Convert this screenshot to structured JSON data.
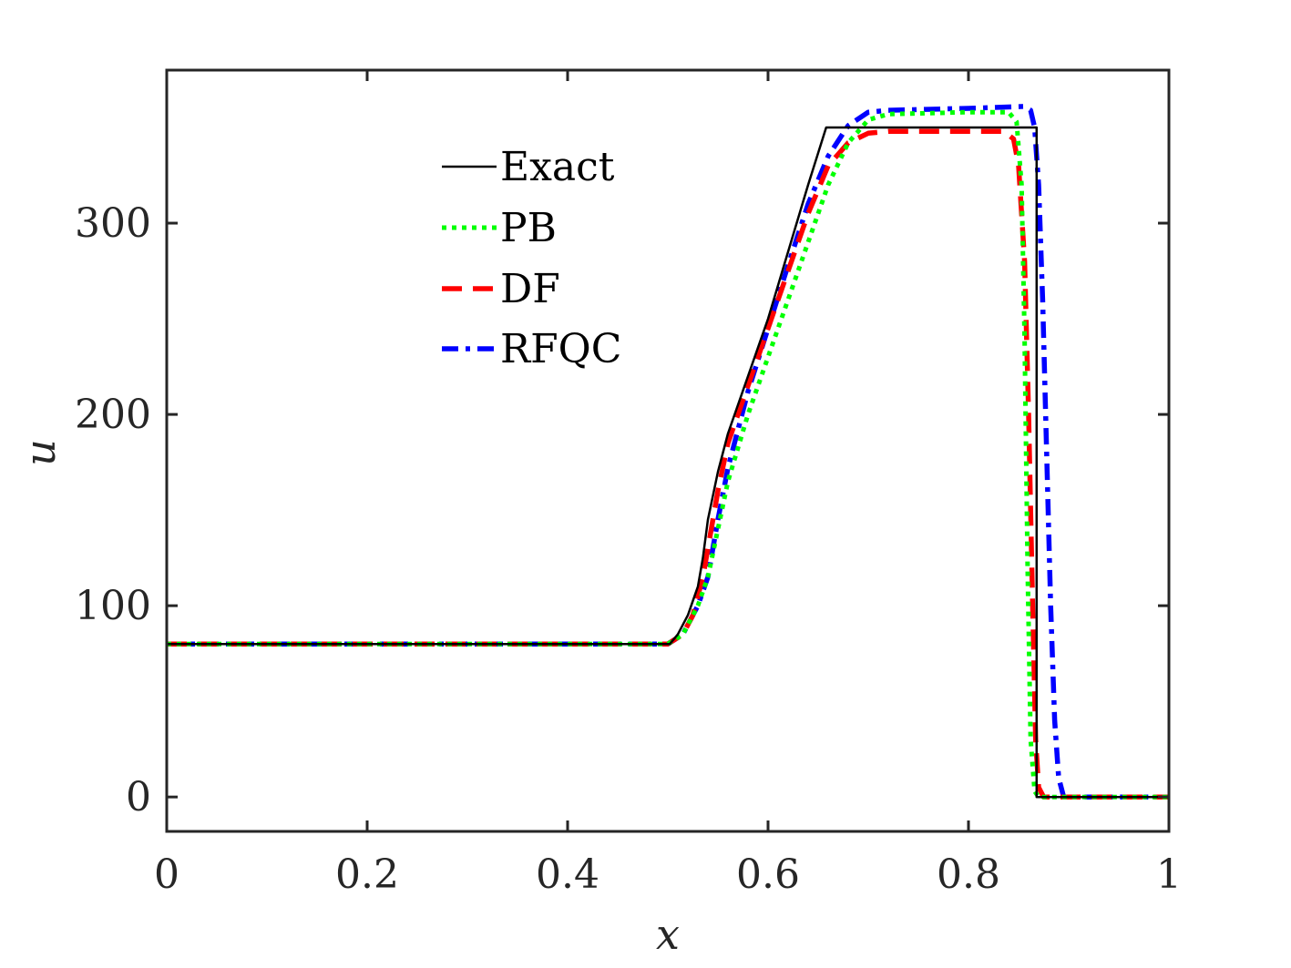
{
  "chart_data": {
    "type": "line",
    "title": "",
    "xlabel": "x",
    "ylabel": "u",
    "xlim": [
      0,
      1
    ],
    "ylim": [
      -18,
      380
    ],
    "xticks": [
      0,
      0.2,
      0.4,
      0.6,
      0.8,
      1
    ],
    "xtick_labels": [
      "0",
      "0.2",
      "0.4",
      "0.6",
      "0.8",
      "1"
    ],
    "yticks": [
      0,
      100,
      200,
      300
    ],
    "ytick_labels": [
      "0",
      "100",
      "200",
      "300"
    ],
    "grid": false,
    "legend_position": "top-center",
    "series": [
      {
        "name": "Exact",
        "color": "#000000",
        "style": "solid",
        "points": [
          [
            0,
            80
          ],
          [
            0.502,
            80
          ],
          [
            0.51,
            85
          ],
          [
            0.52,
            95
          ],
          [
            0.53,
            110
          ],
          [
            0.535,
            125
          ],
          [
            0.54,
            145
          ],
          [
            0.55,
            170
          ],
          [
            0.56,
            190
          ],
          [
            0.58,
            220
          ],
          [
            0.6,
            250
          ],
          [
            0.62,
            285
          ],
          [
            0.64,
            320
          ],
          [
            0.658,
            350
          ],
          [
            0.868,
            350
          ],
          [
            0.868,
            0
          ],
          [
            1,
            0
          ]
        ]
      },
      {
        "name": "PB",
        "color": "#00ff00",
        "style": "dotted",
        "points": [
          [
            0,
            80
          ],
          [
            0.5,
            80
          ],
          [
            0.515,
            85
          ],
          [
            0.53,
            100
          ],
          [
            0.54,
            115
          ],
          [
            0.55,
            140
          ],
          [
            0.56,
            165
          ],
          [
            0.58,
            200
          ],
          [
            0.6,
            230
          ],
          [
            0.62,
            260
          ],
          [
            0.64,
            290
          ],
          [
            0.66,
            320
          ],
          [
            0.68,
            342
          ],
          [
            0.7,
            354
          ],
          [
            0.72,
            357
          ],
          [
            0.8,
            358
          ],
          [
            0.84,
            358
          ],
          [
            0.848,
            353
          ],
          [
            0.853,
            320
          ],
          [
            0.856,
            240
          ],
          [
            0.859,
            120
          ],
          [
            0.862,
            30
          ],
          [
            0.866,
            3
          ],
          [
            0.87,
            0
          ],
          [
            1,
            0
          ]
        ]
      },
      {
        "name": "DF",
        "color": "#ff0000",
        "style": "dashed",
        "points": [
          [
            0,
            80
          ],
          [
            0.5,
            80
          ],
          [
            0.515,
            85
          ],
          [
            0.525,
            95
          ],
          [
            0.535,
            115
          ],
          [
            0.54,
            130
          ],
          [
            0.55,
            160
          ],
          [
            0.56,
            185
          ],
          [
            0.58,
            215
          ],
          [
            0.6,
            245
          ],
          [
            0.62,
            275
          ],
          [
            0.64,
            305
          ],
          [
            0.66,
            330
          ],
          [
            0.68,
            342
          ],
          [
            0.7,
            347
          ],
          [
            0.72,
            348
          ],
          [
            0.8,
            348
          ],
          [
            0.835,
            348
          ],
          [
            0.845,
            344
          ],
          [
            0.85,
            330
          ],
          [
            0.856,
            280
          ],
          [
            0.86,
            200
          ],
          [
            0.864,
            100
          ],
          [
            0.867,
            30
          ],
          [
            0.87,
            5
          ],
          [
            0.875,
            0
          ],
          [
            1,
            0
          ]
        ]
      },
      {
        "name": "RFQC",
        "color": "#0000ff",
        "style": "dashdot",
        "points": [
          [
            0,
            80
          ],
          [
            0.5,
            80
          ],
          [
            0.515,
            85
          ],
          [
            0.53,
            100
          ],
          [
            0.54,
            115
          ],
          [
            0.55,
            145
          ],
          [
            0.56,
            172
          ],
          [
            0.58,
            212
          ],
          [
            0.6,
            245
          ],
          [
            0.62,
            278
          ],
          [
            0.64,
            310
          ],
          [
            0.66,
            335
          ],
          [
            0.68,
            351
          ],
          [
            0.7,
            358
          ],
          [
            0.72,
            359
          ],
          [
            0.8,
            360
          ],
          [
            0.855,
            361
          ],
          [
            0.862,
            359
          ],
          [
            0.866,
            350
          ],
          [
            0.87,
            320
          ],
          [
            0.874,
            260
          ],
          [
            0.878,
            180
          ],
          [
            0.882,
            100
          ],
          [
            0.886,
            40
          ],
          [
            0.89,
            10
          ],
          [
            0.895,
            0
          ],
          [
            1,
            0
          ]
        ]
      }
    ]
  }
}
